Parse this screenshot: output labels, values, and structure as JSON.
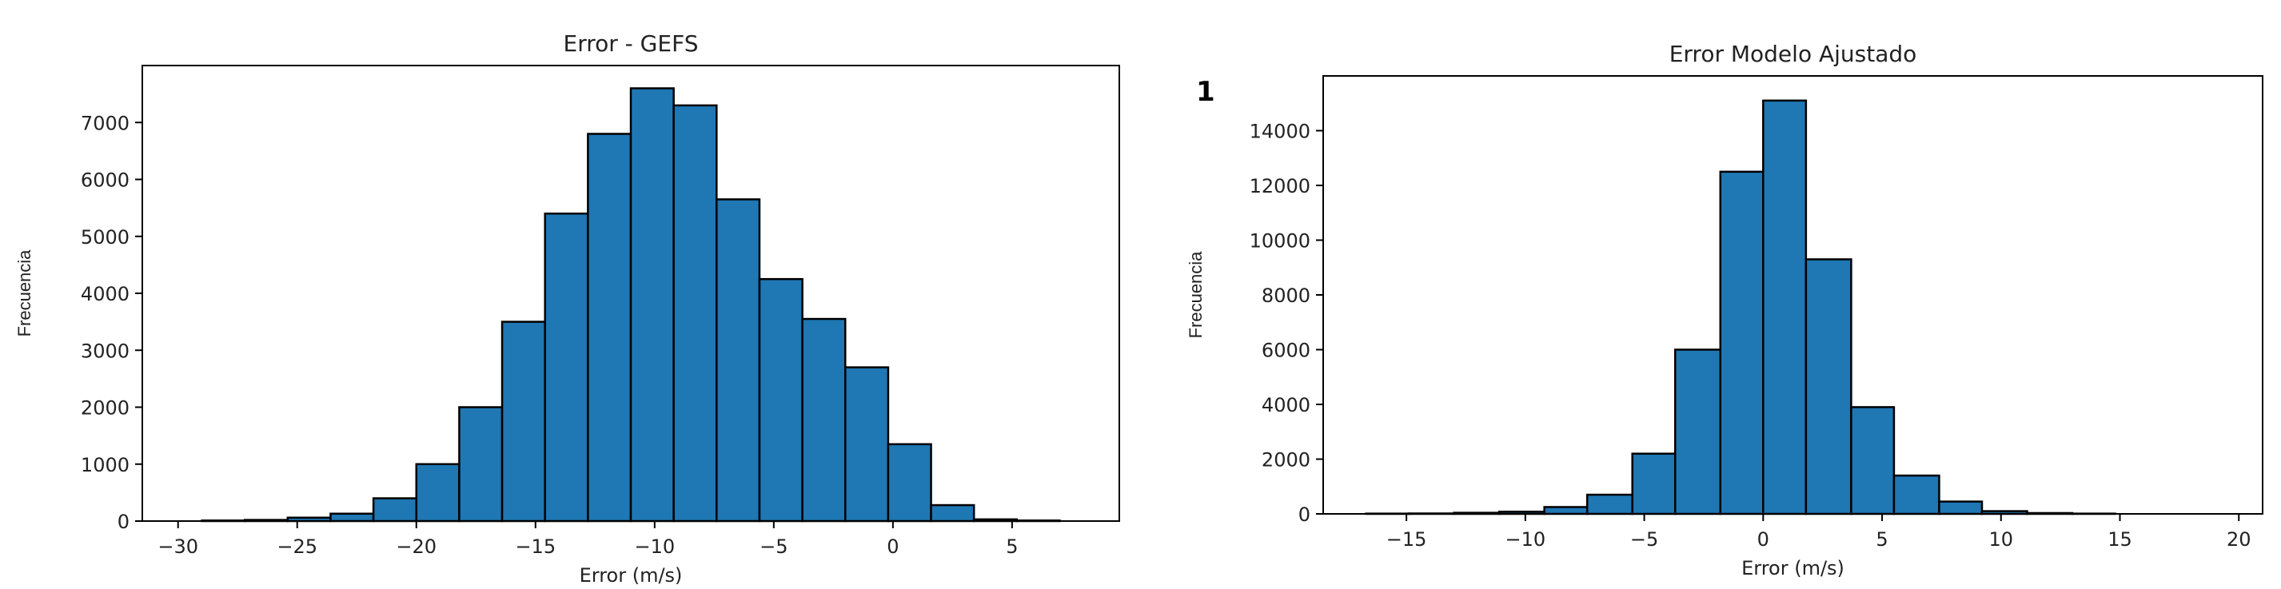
{
  "stray_mark": "1",
  "chart_data": [
    {
      "type": "bar",
      "title": "Error - GEFS",
      "xlabel": "Error (m/s)",
      "ylabel": "Frecuencia",
      "xlim": [
        -31.5,
        9.5
      ],
      "ylim": [
        0,
        8000
      ],
      "xticks": [
        -30,
        -25,
        -20,
        -15,
        -10,
        -5,
        0,
        5
      ],
      "xtick_labels": [
        "−30",
        "−25",
        "−20",
        "−15",
        "−10",
        "−5",
        "0",
        "5"
      ],
      "yticks": [
        0,
        1000,
        2000,
        3000,
        4000,
        5000,
        6000,
        7000
      ],
      "ytick_labels": [
        "0",
        "1000",
        "2000",
        "3000",
        "4000",
        "5000",
        "6000",
        "7000"
      ],
      "grid": false,
      "color": "#1f77b4",
      "bins": [
        {
          "x0": -29.0,
          "x1": -27.2,
          "value": 10
        },
        {
          "x0": -27.2,
          "x1": -25.4,
          "value": 20
        },
        {
          "x0": -25.4,
          "x1": -23.6,
          "value": 60
        },
        {
          "x0": -23.6,
          "x1": -21.8,
          "value": 130
        },
        {
          "x0": -21.8,
          "x1": -20.0,
          "value": 400
        },
        {
          "x0": -20.0,
          "x1": -18.2,
          "value": 1000
        },
        {
          "x0": -18.2,
          "x1": -16.4,
          "value": 2000
        },
        {
          "x0": -16.4,
          "x1": -14.6,
          "value": 3500
        },
        {
          "x0": -14.6,
          "x1": -12.8,
          "value": 5400
        },
        {
          "x0": -12.8,
          "x1": -11.0,
          "value": 6800
        },
        {
          "x0": -11.0,
          "x1": -9.2,
          "value": 7600
        },
        {
          "x0": -9.2,
          "x1": -7.4,
          "value": 7300
        },
        {
          "x0": -7.4,
          "x1": -5.6,
          "value": 5650
        },
        {
          "x0": -5.6,
          "x1": -3.8,
          "value": 4250
        },
        {
          "x0": -3.8,
          "x1": -2.0,
          "value": 3550
        },
        {
          "x0": -2.0,
          "x1": -0.2,
          "value": 2700
        },
        {
          "x0": -0.2,
          "x1": 1.6,
          "value": 1350
        },
        {
          "x0": 1.6,
          "x1": 3.4,
          "value": 280
        },
        {
          "x0": 3.4,
          "x1": 5.2,
          "value": 30
        },
        {
          "x0": 5.2,
          "x1": 7.0,
          "value": 10
        }
      ]
    },
    {
      "type": "bar",
      "title": "Error Modelo Ajustado",
      "xlabel": "Error (m/s)",
      "ylabel": "Frecuencia",
      "xlim": [
        -18.5,
        21.0
      ],
      "ylim": [
        0,
        16000
      ],
      "xticks": [
        -15,
        -10,
        -5,
        0,
        5,
        10,
        15,
        20
      ],
      "xtick_labels": [
        "−15",
        "−10",
        "−5",
        "0",
        "5",
        "10",
        "15",
        "20"
      ],
      "yticks": [
        0,
        2000,
        4000,
        6000,
        8000,
        10000,
        12000,
        14000
      ],
      "ytick_labels": [
        "0",
        "2000",
        "4000",
        "6000",
        "8000",
        "10000",
        "12000",
        "14000"
      ],
      "grid": false,
      "color": "#1f77b4",
      "bins": [
        {
          "x0": -16.7,
          "x1": -14.9,
          "value": 10
        },
        {
          "x0": -14.9,
          "x1": -13.0,
          "value": 15
        },
        {
          "x0": -13.0,
          "x1": -11.1,
          "value": 40
        },
        {
          "x0": -11.1,
          "x1": -9.2,
          "value": 80
        },
        {
          "x0": -9.2,
          "x1": -7.4,
          "value": 250
        },
        {
          "x0": -7.4,
          "x1": -5.5,
          "value": 700
        },
        {
          "x0": -5.5,
          "x1": -3.7,
          "value": 2200
        },
        {
          "x0": -3.7,
          "x1": -1.8,
          "value": 6000
        },
        {
          "x0": -1.8,
          "x1": 0.0,
          "value": 12500
        },
        {
          "x0": 0.0,
          "x1": 1.8,
          "value": 15100
        },
        {
          "x0": 1.8,
          "x1": 3.7,
          "value": 9300
        },
        {
          "x0": 3.7,
          "x1": 5.5,
          "value": 3900
        },
        {
          "x0": 5.5,
          "x1": 7.4,
          "value": 1400
        },
        {
          "x0": 7.4,
          "x1": 9.2,
          "value": 450
        },
        {
          "x0": 9.2,
          "x1": 11.1,
          "value": 100
        },
        {
          "x0": 11.1,
          "x1": 13.0,
          "value": 30
        },
        {
          "x0": 13.0,
          "x1": 14.8,
          "value": 10
        }
      ]
    }
  ]
}
